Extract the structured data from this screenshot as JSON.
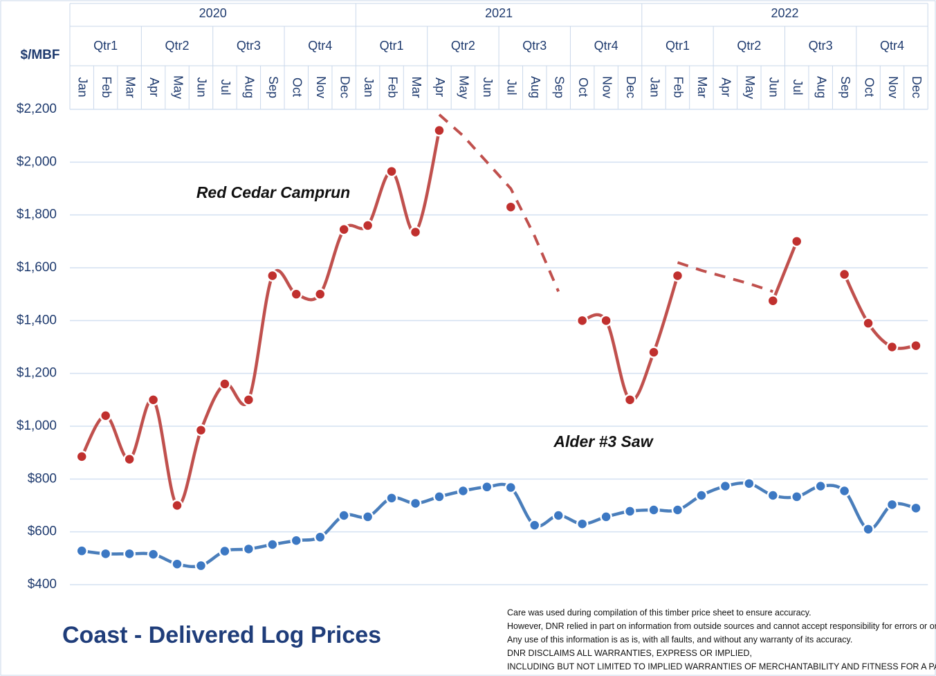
{
  "chart_data": {
    "type": "line",
    "title": "Coast - Delivered Log Prices",
    "y_label": "$/MBF",
    "years": [
      "2020",
      "2021",
      "2022"
    ],
    "quarters": [
      "Qtr1",
      "Qtr2",
      "Qtr3",
      "Qtr4",
      "Qtr1",
      "Qtr2",
      "Qtr3",
      "Qtr4",
      "Qtr1",
      "Qtr2",
      "Qtr3",
      "Qtr4"
    ],
    "categories": [
      "Jan",
      "Feb",
      "Mar",
      "Apr",
      "May",
      "Jun",
      "Jul",
      "Aug",
      "Sep",
      "Oct",
      "Nov",
      "Dec",
      "Jan",
      "Feb",
      "Mar",
      "Apr",
      "May",
      "Jun",
      "Jul",
      "Aug",
      "Sep",
      "Oct",
      "Nov",
      "Dec",
      "Jan",
      "Feb",
      "Mar",
      "Apr",
      "May",
      "Jun",
      "Jul",
      "Aug",
      "Sep",
      "Oct",
      "Nov",
      "Dec"
    ],
    "series": [
      {
        "name": "Red Cedar Camprun",
        "color": "#c0504d",
        "marker_color": "#c0302e",
        "values": [
          885,
          1040,
          875,
          1100,
          700,
          985,
          1160,
          1100,
          1570,
          1500,
          1500,
          1745,
          1760,
          1965,
          1735,
          2120,
          null,
          null,
          1830,
          null,
          null,
          1400,
          1400,
          1100,
          1280,
          1570,
          null,
          null,
          null,
          1475,
          1700,
          null,
          1575,
          1390,
          1300,
          1305
        ]
      },
      {
        "name": "Alder #3 Saw",
        "color": "#4a7ebb",
        "marker_color": "#3c78c3",
        "values": [
          528,
          517,
          517,
          515,
          478,
          472,
          527,
          535,
          552,
          567,
          580,
          662,
          657,
          728,
          708,
          733,
          755,
          770,
          768,
          625,
          662,
          630,
          657,
          678,
          683,
          683,
          738,
          773,
          783,
          738,
          733,
          773,
          755,
          610,
          703,
          690
        ]
      },
      {
        "color": "#c0504d",
        "dashed": true,
        "values": [
          null,
          null,
          null,
          null,
          null,
          null,
          null,
          null,
          null,
          null,
          null,
          null,
          null,
          null,
          null,
          2180,
          2100,
          2000,
          1900,
          1720,
          1510,
          null,
          null,
          null,
          null,
          1620,
          1590,
          1565,
          1540,
          1510,
          null,
          null,
          null,
          null,
          null,
          null
        ]
      }
    ],
    "ylim": [
      400,
      2200
    ],
    "yticks": [
      {
        "value": 400,
        "label": "$400"
      },
      {
        "value": 600,
        "label": "$600"
      },
      {
        "value": 800,
        "label": "$800"
      },
      {
        "value": 1000,
        "label": "$1,000"
      },
      {
        "value": 1200,
        "label": "$1,200"
      },
      {
        "value": 1400,
        "label": "$1,400"
      },
      {
        "value": 1600,
        "label": "$1,600"
      },
      {
        "value": 1800,
        "label": "$1,800"
      },
      {
        "value": 2000,
        "label": "$2,000"
      },
      {
        "value": 2200,
        "label": "$2,200"
      }
    ],
    "grid": true
  },
  "disclaimer": [
    "Care was used during compilation of this timber price sheet to ensure accuracy.",
    "However, DNR relied in part on information from outside sources and cannot accept responsibility for errors or omissions.",
    "Any use of this information is as is, with all faults, and without any warranty of its accuracy.",
    "DNR DISCLAIMS ALL WARRANTIES, EXPRESS OR IMPLIED,",
    "INCLUDING BUT NOT LIMITED TO IMPLIED WARRANTIES OF MERCHANTABILITY AND FITNESS FOR A PARTICULAR PURPOSE."
  ]
}
